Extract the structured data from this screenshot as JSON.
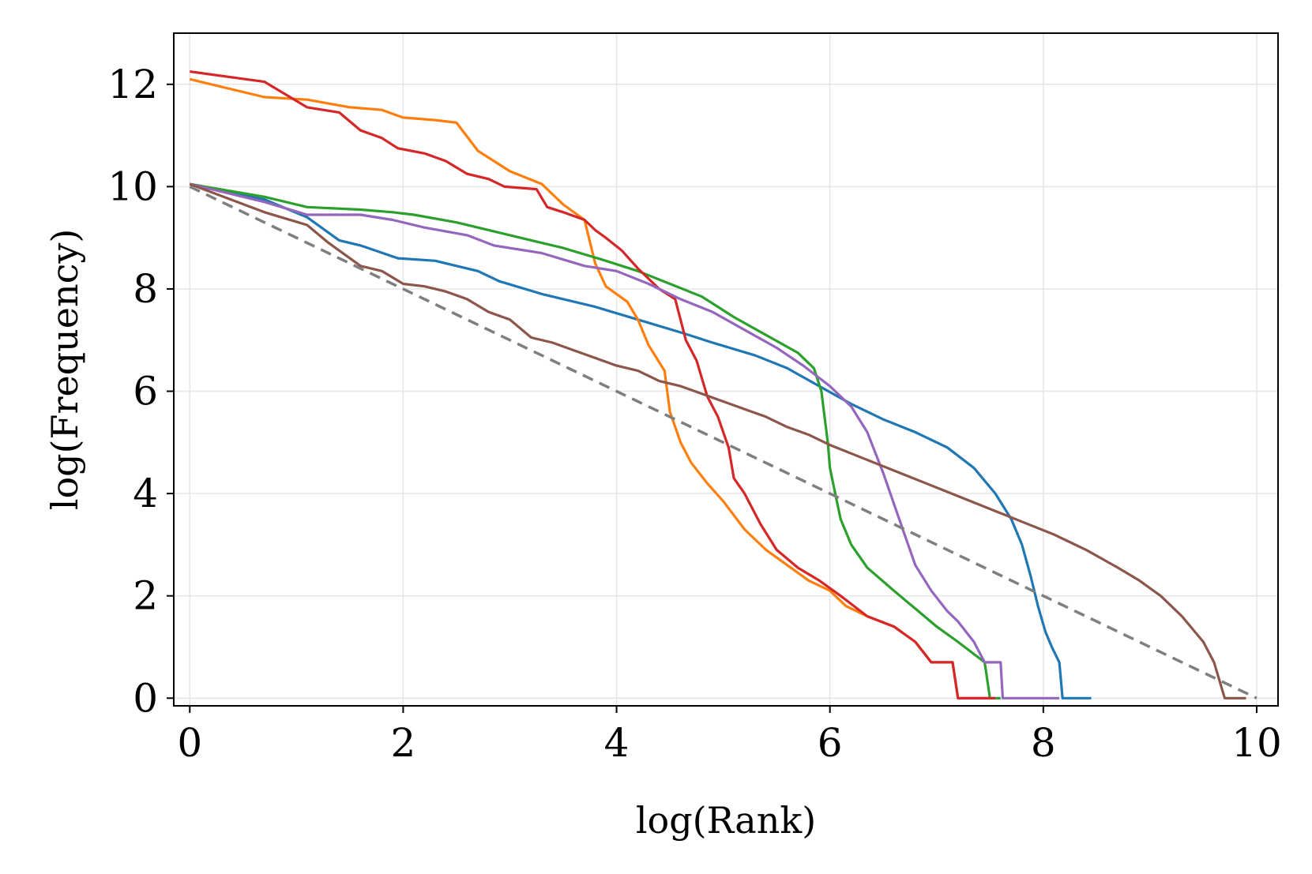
{
  "chart_data": {
    "type": "line",
    "title": "",
    "xlabel": "log(Rank)",
    "ylabel": "log(Frequency)",
    "xlim": [
      -0.15,
      10.2
    ],
    "ylim": [
      -0.15,
      13.0
    ],
    "xticks": [
      0,
      2,
      4,
      6,
      8,
      10
    ],
    "yticks": [
      0,
      2,
      4,
      6,
      8,
      10,
      12
    ],
    "grid": true,
    "legend": "none",
    "series": [
      {
        "color": "#1f77b4",
        "points": [
          [
            0,
            10.05
          ],
          [
            0.7,
            9.75
          ],
          [
            1.1,
            9.4
          ],
          [
            1.4,
            8.95
          ],
          [
            1.6,
            8.85
          ],
          [
            1.95,
            8.6
          ],
          [
            2.3,
            8.55
          ],
          [
            2.5,
            8.45
          ],
          [
            2.7,
            8.35
          ],
          [
            2.9,
            8.15
          ],
          [
            3.3,
            7.9
          ],
          [
            3.8,
            7.65
          ],
          [
            4.2,
            7.4
          ],
          [
            4.6,
            7.15
          ],
          [
            4.9,
            6.95
          ],
          [
            5.3,
            6.7
          ],
          [
            5.6,
            6.45
          ],
          [
            5.9,
            6.1
          ],
          [
            6.2,
            5.75
          ],
          [
            6.5,
            5.45
          ],
          [
            6.8,
            5.2
          ],
          [
            7.1,
            4.9
          ],
          [
            7.35,
            4.5
          ],
          [
            7.55,
            4.0
          ],
          [
            7.7,
            3.5
          ],
          [
            7.8,
            3.0
          ],
          [
            7.88,
            2.4
          ],
          [
            7.95,
            1.8
          ],
          [
            8.02,
            1.3
          ],
          [
            8.08,
            1.0
          ],
          [
            8.15,
            0.7
          ],
          [
            8.18,
            0.0
          ],
          [
            8.45,
            0.0
          ]
        ]
      },
      {
        "color": "#ff7f0e",
        "points": [
          [
            0,
            12.1
          ],
          [
            0.7,
            11.75
          ],
          [
            1.1,
            11.7
          ],
          [
            1.5,
            11.55
          ],
          [
            1.8,
            11.5
          ],
          [
            2.0,
            11.35
          ],
          [
            2.3,
            11.3
          ],
          [
            2.5,
            11.25
          ],
          [
            2.7,
            10.7
          ],
          [
            3.0,
            10.3
          ],
          [
            3.3,
            10.05
          ],
          [
            3.5,
            9.65
          ],
          [
            3.7,
            9.35
          ],
          [
            3.8,
            8.5
          ],
          [
            3.9,
            8.05
          ],
          [
            4.1,
            7.75
          ],
          [
            4.2,
            7.4
          ],
          [
            4.3,
            6.9
          ],
          [
            4.45,
            6.4
          ],
          [
            4.5,
            5.6
          ],
          [
            4.6,
            5.0
          ],
          [
            4.7,
            4.6
          ],
          [
            4.85,
            4.2
          ],
          [
            5.0,
            3.85
          ],
          [
            5.2,
            3.3
          ],
          [
            5.4,
            2.9
          ],
          [
            5.6,
            2.6
          ],
          [
            5.8,
            2.3
          ],
          [
            6.0,
            2.1
          ],
          [
            6.15,
            1.8
          ],
          [
            6.35,
            1.6
          ],
          [
            6.6,
            1.4
          ],
          [
            6.8,
            1.1
          ],
          [
            6.95,
            0.7
          ],
          [
            7.15,
            0.7
          ],
          [
            7.2,
            0.0
          ],
          [
            7.5,
            0.0
          ]
        ]
      },
      {
        "color": "#2ca02c",
        "points": [
          [
            0,
            10.05
          ],
          [
            0.7,
            9.8
          ],
          [
            1.1,
            9.6
          ],
          [
            1.6,
            9.55
          ],
          [
            1.9,
            9.5
          ],
          [
            2.1,
            9.45
          ],
          [
            2.5,
            9.3
          ],
          [
            2.8,
            9.15
          ],
          [
            3.1,
            9.0
          ],
          [
            3.5,
            8.8
          ],
          [
            3.9,
            8.55
          ],
          [
            4.2,
            8.35
          ],
          [
            4.5,
            8.1
          ],
          [
            4.8,
            7.85
          ],
          [
            5.1,
            7.45
          ],
          [
            5.4,
            7.1
          ],
          [
            5.7,
            6.75
          ],
          [
            5.85,
            6.45
          ],
          [
            5.92,
            6.0
          ],
          [
            5.95,
            5.5
          ],
          [
            5.98,
            5.0
          ],
          [
            6.0,
            4.5
          ],
          [
            6.05,
            4.0
          ],
          [
            6.1,
            3.5
          ],
          [
            6.2,
            3.0
          ],
          [
            6.35,
            2.55
          ],
          [
            6.6,
            2.1
          ],
          [
            6.8,
            1.75
          ],
          [
            7.0,
            1.4
          ],
          [
            7.2,
            1.1
          ],
          [
            7.45,
            0.7
          ],
          [
            7.5,
            0.0
          ],
          [
            7.6,
            0.0
          ]
        ]
      },
      {
        "color": "#d62728",
        "points": [
          [
            0,
            12.25
          ],
          [
            0.7,
            12.05
          ],
          [
            1.1,
            11.55
          ],
          [
            1.4,
            11.45
          ],
          [
            1.6,
            11.1
          ],
          [
            1.8,
            10.95
          ],
          [
            1.95,
            10.75
          ],
          [
            2.2,
            10.65
          ],
          [
            2.4,
            10.5
          ],
          [
            2.6,
            10.25
          ],
          [
            2.8,
            10.15
          ],
          [
            2.95,
            10.0
          ],
          [
            3.25,
            9.95
          ],
          [
            3.35,
            9.6
          ],
          [
            3.5,
            9.5
          ],
          [
            3.7,
            9.35
          ],
          [
            3.8,
            9.15
          ],
          [
            3.9,
            9.0
          ],
          [
            4.05,
            8.75
          ],
          [
            4.2,
            8.4
          ],
          [
            4.4,
            8.0
          ],
          [
            4.55,
            7.8
          ],
          [
            4.65,
            7.0
          ],
          [
            4.75,
            6.6
          ],
          [
            4.85,
            5.9
          ],
          [
            4.95,
            5.5
          ],
          [
            5.05,
            4.9
          ],
          [
            5.1,
            4.3
          ],
          [
            5.2,
            4.0
          ],
          [
            5.35,
            3.4
          ],
          [
            5.5,
            2.9
          ],
          [
            5.7,
            2.55
          ],
          [
            5.9,
            2.3
          ],
          [
            6.1,
            2.0
          ],
          [
            6.35,
            1.6
          ],
          [
            6.6,
            1.4
          ],
          [
            6.8,
            1.1
          ],
          [
            6.95,
            0.7
          ],
          [
            7.15,
            0.7
          ],
          [
            7.2,
            0.0
          ],
          [
            7.55,
            0.0
          ]
        ]
      },
      {
        "color": "#9467bd",
        "points": [
          [
            0,
            10.05
          ],
          [
            0.7,
            9.7
          ],
          [
            1.1,
            9.45
          ],
          [
            1.6,
            9.45
          ],
          [
            1.9,
            9.35
          ],
          [
            2.2,
            9.2
          ],
          [
            2.6,
            9.05
          ],
          [
            2.85,
            8.85
          ],
          [
            3.3,
            8.7
          ],
          [
            3.7,
            8.45
          ],
          [
            4.0,
            8.35
          ],
          [
            4.3,
            8.1
          ],
          [
            4.6,
            7.8
          ],
          [
            4.9,
            7.55
          ],
          [
            5.2,
            7.2
          ],
          [
            5.5,
            6.85
          ],
          [
            5.75,
            6.5
          ],
          [
            6.0,
            6.1
          ],
          [
            6.2,
            5.7
          ],
          [
            6.35,
            5.2
          ],
          [
            6.5,
            4.4
          ],
          [
            6.6,
            3.8
          ],
          [
            6.7,
            3.2
          ],
          [
            6.8,
            2.6
          ],
          [
            6.95,
            2.1
          ],
          [
            7.1,
            1.7
          ],
          [
            7.2,
            1.5
          ],
          [
            7.35,
            1.1
          ],
          [
            7.45,
            0.7
          ],
          [
            7.6,
            0.7
          ],
          [
            7.62,
            0.0
          ],
          [
            8.15,
            0.0
          ]
        ]
      },
      {
        "color": "#8c564b",
        "points": [
          [
            0,
            10.05
          ],
          [
            0.7,
            9.5
          ],
          [
            1.1,
            9.25
          ],
          [
            1.3,
            8.9
          ],
          [
            1.6,
            8.45
          ],
          [
            1.8,
            8.35
          ],
          [
            2.0,
            8.1
          ],
          [
            2.2,
            8.05
          ],
          [
            2.4,
            7.95
          ],
          [
            2.6,
            7.8
          ],
          [
            2.8,
            7.55
          ],
          [
            3.0,
            7.4
          ],
          [
            3.2,
            7.05
          ],
          [
            3.4,
            6.95
          ],
          [
            3.6,
            6.8
          ],
          [
            3.8,
            6.65
          ],
          [
            4.0,
            6.5
          ],
          [
            4.2,
            6.4
          ],
          [
            4.4,
            6.2
          ],
          [
            4.6,
            6.1
          ],
          [
            4.8,
            5.95
          ],
          [
            5.0,
            5.8
          ],
          [
            5.2,
            5.65
          ],
          [
            5.4,
            5.5
          ],
          [
            5.6,
            5.3
          ],
          [
            5.8,
            5.15
          ],
          [
            6.0,
            4.95
          ],
          [
            6.3,
            4.7
          ],
          [
            6.6,
            4.45
          ],
          [
            6.9,
            4.2
          ],
          [
            7.2,
            3.95
          ],
          [
            7.5,
            3.7
          ],
          [
            7.8,
            3.45
          ],
          [
            8.1,
            3.2
          ],
          [
            8.4,
            2.9
          ],
          [
            8.7,
            2.55
          ],
          [
            8.9,
            2.3
          ],
          [
            9.1,
            2.0
          ],
          [
            9.3,
            1.6
          ],
          [
            9.5,
            1.1
          ],
          [
            9.6,
            0.7
          ],
          [
            9.7,
            0.0
          ],
          [
            9.9,
            0.0
          ]
        ]
      },
      {
        "color": "#7f7f7f",
        "dashed": true,
        "points": [
          [
            0,
            10.0
          ],
          [
            10.0,
            0.0
          ]
        ]
      }
    ]
  }
}
